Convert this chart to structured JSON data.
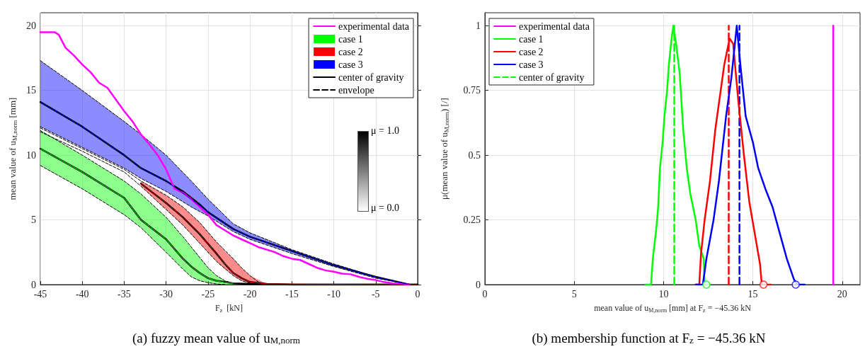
{
  "chart_data": [
    {
      "type": "line",
      "title": "(a) fuzzy mean value of u$_{M,norm}$",
      "xlabel": "F$_{z}$  [kN]",
      "ylabel": "mean value of u$_{M,norm}$ [mm]",
      "xlim": [
        -45,
        0
      ],
      "xticks": [
        -45,
        -40,
        -35,
        -30,
        -25,
        -20,
        -15,
        -10,
        -5,
        0
      ],
      "ylim": [
        0,
        21
      ],
      "yticks": [
        0,
        5,
        10,
        15,
        20
      ],
      "grid": true,
      "legend": "top right",
      "annotations": [
        "μ = 1.0",
        "μ = 0.0"
      ],
      "series": [
        {
          "name": "experimental data",
          "color": "#ff00ff",
          "x": [
            -45,
            -43.3,
            -42.8,
            -42,
            -41,
            -40,
            -39,
            -38,
            -37,
            -36,
            -35,
            -34,
            -33,
            -32.2,
            -31,
            -30,
            -29,
            -28,
            -27,
            -26,
            -25,
            -24,
            -23,
            -22,
            -21,
            -20,
            -19,
            -18,
            -17,
            -16,
            -15,
            -14,
            -13,
            -12,
            -11,
            -10,
            -9,
            -8,
            -7,
            -6,
            -5,
            -4,
            -3,
            -2,
            -1
          ],
          "values": [
            19.5,
            19.5,
            19.3,
            18.3,
            17.7,
            17.0,
            16.4,
            15.6,
            15.2,
            14.3,
            13.4,
            12.6,
            11.6,
            11.0,
            10.0,
            8.9,
            7.4,
            7.1,
            6.6,
            6.0,
            5.4,
            4.6,
            4.2,
            3.8,
            3.5,
            3.2,
            2.9,
            2.7,
            2.5,
            2.2,
            2.0,
            1.9,
            1.6,
            1.3,
            1.1,
            1.0,
            0.85,
            0.8,
            0.6,
            0.45,
            0.35,
            0.2,
            0.1,
            0.05,
            0
          ]
        },
        {
          "name": "case 1",
          "color": "#00ff00",
          "x": [
            -45,
            -40,
            -35,
            -33,
            -30,
            -28,
            -27,
            -26,
            -25,
            -24,
            -23,
            -22,
            -20,
            0
          ],
          "values": [
            10.5,
            8.7,
            6.7,
            5.0,
            3.5,
            2.0,
            1.4,
            0.9,
            0.5,
            0.3,
            0.15,
            0.1,
            null,
            null
          ],
          "lower": [
            9.2,
            7.4,
            5.4,
            4.4,
            2.5,
            1.2,
            0.6,
            0.3,
            0.15,
            0.05,
            0,
            0,
            0,
            0
          ],
          "upper": [
            11.9,
            10.0,
            8.0,
            7.0,
            5.2,
            3.7,
            2.9,
            2.1,
            1.3,
            0.7,
            0.3,
            0.1,
            0.05,
            0
          ]
        },
        {
          "name": "case 2",
          "color": "#ff0000",
          "x": [
            -33,
            -30,
            -28,
            -26,
            -24,
            -23,
            -22,
            -21,
            -20,
            -18,
            0
          ],
          "values": [
            7.8,
            6.3,
            5.2,
            3.9,
            2.4,
            1.6,
            0.9,
            0.5,
            0.2,
            0.05,
            0
          ],
          "lower": [
            7.6,
            5.8,
            4.6,
            3.2,
            1.8,
            1.2,
            0.7,
            0.3,
            0.1,
            0,
            0
          ],
          "upper": [
            8.0,
            6.9,
            6.0,
            4.8,
            3.3,
            2.6,
            2.0,
            1.3,
            0.7,
            0.05,
            0
          ]
        },
        {
          "name": "case 3",
          "color": "#0000ff",
          "x": [
            -45,
            -40,
            -35,
            -33,
            -30,
            -27,
            -25,
            -22,
            -20,
            -15,
            -10,
            -5,
            -1
          ],
          "values": [
            14.1,
            12.2,
            10.0,
            9.0,
            8.0,
            6.6,
            5.6,
            4.3,
            3.7,
            2.6,
            1.5,
            0.6,
            0
          ],
          "lower": [
            12.2,
            10.6,
            9.0,
            8.2,
            7.2,
            6.0,
            5.3,
            4.1,
            3.5,
            2.4,
            1.4,
            0.5,
            0
          ],
          "upper": [
            17.3,
            15.0,
            12.6,
            11.6,
            10.0,
            8.0,
            6.6,
            4.7,
            4.0,
            2.7,
            1.6,
            0.6,
            0
          ]
        },
        {
          "name": "center of gravity",
          "color": "#000000",
          "x": [
            -45,
            -40,
            -35,
            -33,
            -30,
            -28,
            -27,
            -26,
            -25,
            -24,
            -22,
            -20,
            -15,
            0
          ],
          "values": [
            10.5,
            8.7,
            6.7,
            5.0,
            3.5,
            2.0,
            1.4,
            0.9,
            0.5,
            0.3,
            0.1,
            0.05,
            0,
            0
          ]
        },
        {
          "color": "#000000",
          "x": [
            -33,
            -30,
            -28,
            -26,
            -24,
            -23,
            -22,
            -21,
            -20,
            -18,
            -15,
            0
          ],
          "values": [
            7.8,
            6.3,
            5.2,
            3.9,
            2.4,
            1.6,
            0.9,
            0.5,
            0.2,
            0.05,
            0,
            0
          ]
        },
        {
          "color": "#000000",
          "x": [
            -45,
            -40,
            -35,
            -33,
            -30,
            -28,
            -26,
            -25,
            -22,
            -20,
            -15,
            -10,
            -5,
            -1
          ],
          "values": [
            14.1,
            12.2,
            10.0,
            9.0,
            8.0,
            7.2,
            6.2,
            5.6,
            4.3,
            3.7,
            2.6,
            1.5,
            0.6,
            0
          ]
        },
        {
          "name": "envelope",
          "color": "#000000",
          "line_style": "dashed",
          "x": [
            -45,
            -40,
            -35,
            -33,
            -30,
            -28,
            -27,
            -26,
            -25,
            -24,
            -23
          ],
          "values": [
            9.2,
            7.4,
            5.4,
            4.4,
            2.5,
            1.2,
            0.6,
            0.3,
            0.15,
            0.05,
            0
          ]
        },
        {
          "color": "#000000",
          "line_style": "dashed",
          "x": [
            -45,
            -40,
            -35,
            -33,
            -30,
            -28,
            -27,
            -26,
            -25,
            -24,
            -23,
            -22,
            -20
          ],
          "values": [
            11.9,
            10.0,
            8.0,
            7.0,
            5.2,
            3.7,
            2.9,
            2.1,
            1.3,
            0.7,
            0.3,
            0.1,
            0
          ]
        },
        {
          "color": "#000000",
          "line_style": "dashed",
          "x": [
            -45,
            -40,
            -35,
            -33,
            -30,
            -28,
            -26,
            -24,
            -22,
            -21,
            -20,
            -19
          ],
          "values": [
            11.8,
            10.3,
            8.7,
            7.6,
            5.8,
            4.6,
            3.2,
            1.8,
            0.7,
            0.3,
            0.1,
            0
          ]
        },
        {
          "color": "#000000",
          "line_style": "dashed",
          "x": [
            -45,
            -40,
            -35,
            -33,
            -30,
            -28,
            -26,
            -24,
            -22,
            -21,
            -20,
            -19,
            -18
          ],
          "values": [
            12.1,
            10.5,
            8.9,
            8.0,
            6.9,
            6.0,
            4.8,
            3.3,
            2.0,
            1.3,
            0.7,
            0.2,
            0
          ]
        },
        {
          "color": "#000000",
          "line_style": "dashed",
          "x": [
            -45,
            -40,
            -35,
            -33,
            -30,
            -27,
            -25,
            -22,
            -20,
            -15,
            -10,
            -5,
            -1.5
          ],
          "values": [
            12.2,
            10.6,
            9.0,
            8.2,
            7.2,
            6.0,
            5.3,
            4.1,
            3.5,
            2.4,
            1.4,
            0.5,
            0.1
          ]
        },
        {
          "color": "#000000",
          "line_style": "dashed",
          "x": [
            -45,
            -40,
            -35,
            -33,
            -30,
            -27,
            -25,
            -22,
            -20,
            -15,
            -10,
            -5,
            -1
          ],
          "values": [
            17.3,
            15.0,
            12.6,
            11.6,
            10.0,
            8.0,
            6.6,
            4.7,
            4.0,
            2.7,
            1.6,
            0.6,
            0
          ]
        }
      ]
    },
    {
      "type": "line",
      "title": "(b) membership function at F$_{z}$ = −45.36 kN",
      "xlabel": "mean value of u$_{M,norm}$ [mm] at F$_{z}$ = −45.36 kN",
      "ylabel": "μ(mean value of u$_{M,norm}$) [/]",
      "xlim": [
        0,
        21
      ],
      "xticks": [
        0,
        5,
        10,
        15,
        20
      ],
      "ylim": [
        0,
        1.05
      ],
      "yticks": [
        0,
        0.25,
        0.5,
        0.75,
        1
      ],
      "grid": true,
      "legend": "top left",
      "series": [
        {
          "name": "experimental data",
          "color": "#ff00ff",
          "x": [
            19.5,
            19.5
          ],
          "values": [
            0,
            1
          ]
        },
        {
          "name": "case 1",
          "color": "#00ff00",
          "x": [
            9.0,
            9.3,
            9.4,
            9.6,
            9.7,
            9.8,
            9.95,
            10.05,
            10.2,
            10.3,
            10.45,
            10.55,
            10.7,
            10.9,
            11.1,
            11.3,
            11.5,
            11.8,
            12.0,
            12.25,
            12.3,
            12.6
          ],
          "values": [
            0,
            0,
            0.1,
            0.22,
            0.3,
            0.45,
            0.55,
            0.65,
            0.75,
            0.85,
            0.95,
            1.0,
            0.93,
            0.82,
            0.6,
            0.45,
            0.35,
            0.25,
            0.15,
            0.1,
            0,
            0
          ]
        },
        {
          "name": "case 2",
          "color": "#ff0000",
          "x": [
            11.8,
            12.0,
            12.1,
            12.3,
            12.6,
            12.9,
            13.2,
            13.4,
            13.7,
            13.9,
            14.0,
            14.2,
            14.5,
            14.8,
            15.1,
            15.4,
            15.5,
            16.0
          ],
          "values": [
            0,
            0,
            0.12,
            0.25,
            0.4,
            0.6,
            0.75,
            0.85,
            0.95,
            0.93,
            0.85,
            0.7,
            0.5,
            0.32,
            0.2,
            0.08,
            0,
            0
          ]
        },
        {
          "name": "case 3",
          "color": "#0000ff",
          "x": [
            11.8,
            12.2,
            12.4,
            12.8,
            13.1,
            13.5,
            13.8,
            14.1,
            14.3,
            14.6,
            15.0,
            15.3,
            15.7,
            16.1,
            16.5,
            16.9,
            17.3,
            17.5,
            17.9
          ],
          "values": [
            0,
            0,
            0.1,
            0.25,
            0.4,
            0.65,
            0.8,
            1.0,
            0.85,
            0.65,
            0.55,
            0.45,
            0.37,
            0.3,
            0.2,
            0.1,
            0.02,
            0,
            0
          ]
        },
        {
          "name": "center of gravity",
          "color": "#00ff00",
          "line_style": "dashed",
          "x": [
            10.6,
            10.6
          ],
          "values": [
            0,
            1
          ]
        },
        {
          "color": "#ff0000",
          "line_style": "dashed",
          "x": [
            13.65,
            13.65
          ],
          "values": [
            0,
            1
          ]
        },
        {
          "color": "#0000ff",
          "line_style": "dashed",
          "x": [
            14.25,
            14.25
          ],
          "values": [
            0,
            1
          ]
        },
        {
          "type": "scatter",
          "marker": "circle",
          "colors": [
            "#00ff00",
            "#ff0000",
            "#0000ff"
          ],
          "x": [
            12.4,
            15.6,
            17.4
          ],
          "values": [
            0,
            0,
            0
          ]
        }
      ]
    }
  ]
}
